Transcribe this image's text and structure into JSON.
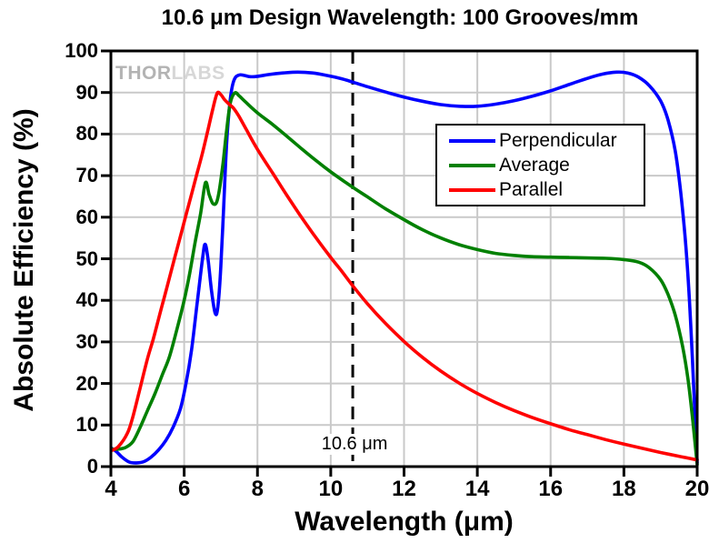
{
  "title": "10.6 μm Design Wavelength: 100 Grooves/mm",
  "watermark": {
    "part1": "THOR",
    "part2": "LABS"
  },
  "chart_data": {
    "type": "line",
    "title": "10.6 μm Design Wavelength: 100 Grooves/mm",
    "xlabel": "Wavelength (μm)",
    "ylabel": "Absolute Efficiency (%)",
    "xlim": [
      4,
      20
    ],
    "ylim": [
      0,
      100
    ],
    "x_ticks": [
      4,
      6,
      8,
      10,
      12,
      14,
      16,
      18,
      20
    ],
    "y_ticks": [
      0,
      10,
      20,
      30,
      40,
      50,
      60,
      70,
      80,
      90,
      100
    ],
    "grid": true,
    "grid_color": "#c9c9c9",
    "frame_color": "#000000",
    "legend_position": "upper-right-inside",
    "annotation": {
      "x": 10.6,
      "label": "10.6 μm",
      "style": "dashed-vertical-line"
    },
    "series": [
      {
        "name": "Perpendicular",
        "color": "#0000ff",
        "points": [
          [
            4,
            4.5
          ],
          [
            4.15,
            3.6
          ],
          [
            4.3,
            2.3
          ],
          [
            4.5,
            1.1
          ],
          [
            4.7,
            0.9
          ],
          [
            4.9,
            1.2
          ],
          [
            5.1,
            2.3
          ],
          [
            5.3,
            4
          ],
          [
            5.5,
            6.3
          ],
          [
            5.7,
            9.5
          ],
          [
            5.9,
            14
          ],
          [
            6.05,
            20
          ],
          [
            6.2,
            28
          ],
          [
            6.35,
            39
          ],
          [
            6.5,
            50
          ],
          [
            6.57,
            53.5
          ],
          [
            6.65,
            50
          ],
          [
            6.75,
            42
          ],
          [
            6.85,
            36.8
          ],
          [
            6.92,
            38.5
          ],
          [
            7,
            48
          ],
          [
            7.08,
            63
          ],
          [
            7.16,
            78
          ],
          [
            7.26,
            88.5
          ],
          [
            7.36,
            93
          ],
          [
            7.5,
            94.2
          ],
          [
            7.65,
            94.1
          ],
          [
            7.8,
            93.8
          ],
          [
            8,
            93.9
          ],
          [
            8.3,
            94.3
          ],
          [
            8.7,
            94.7
          ],
          [
            9.1,
            94.9
          ],
          [
            9.5,
            94.7
          ],
          [
            9.9,
            94.1
          ],
          [
            10.3,
            93.3
          ],
          [
            10.6,
            92.5
          ],
          [
            11,
            91.4
          ],
          [
            11.5,
            90.1
          ],
          [
            12,
            88.9
          ],
          [
            12.5,
            87.9
          ],
          [
            13,
            87.1
          ],
          [
            13.5,
            86.7
          ],
          [
            14,
            86.7
          ],
          [
            14.5,
            87.2
          ],
          [
            15,
            88
          ],
          [
            15.5,
            89.1
          ],
          [
            16,
            90.4
          ],
          [
            16.5,
            91.9
          ],
          [
            17,
            93.4
          ],
          [
            17.4,
            94.4
          ],
          [
            17.8,
            94.9
          ],
          [
            18.1,
            94.7
          ],
          [
            18.4,
            93.7
          ],
          [
            18.7,
            91.6
          ],
          [
            19,
            88
          ],
          [
            19.2,
            83.5
          ],
          [
            19.4,
            76
          ],
          [
            19.55,
            66
          ],
          [
            19.7,
            52
          ],
          [
            19.82,
            35
          ],
          [
            19.92,
            16
          ],
          [
            20,
            1
          ]
        ]
      },
      {
        "name": "Average",
        "color": "#008000",
        "points": [
          [
            4,
            4.2
          ],
          [
            4.2,
            4.2
          ],
          [
            4.4,
            4.6
          ],
          [
            4.6,
            6
          ],
          [
            4.8,
            9.5
          ],
          [
            5,
            13.5
          ],
          [
            5.2,
            17.5
          ],
          [
            5.4,
            22
          ],
          [
            5.6,
            26.5
          ],
          [
            5.8,
            33
          ],
          [
            6,
            40
          ],
          [
            6.15,
            46.5
          ],
          [
            6.3,
            54
          ],
          [
            6.45,
            61
          ],
          [
            6.58,
            68.3
          ],
          [
            6.68,
            65.5
          ],
          [
            6.78,
            63.3
          ],
          [
            6.88,
            63.5
          ],
          [
            6.96,
            66.5
          ],
          [
            7.06,
            73
          ],
          [
            7.16,
            81
          ],
          [
            7.26,
            87.5
          ],
          [
            7.38,
            89.9
          ],
          [
            7.5,
            89.2
          ],
          [
            7.7,
            87.5
          ],
          [
            8,
            85.1
          ],
          [
            8.4,
            82.4
          ],
          [
            8.8,
            79.5
          ],
          [
            9.2,
            76.5
          ],
          [
            9.6,
            73.6
          ],
          [
            10,
            70.9
          ],
          [
            10.6,
            67.2
          ],
          [
            11,
            64.9
          ],
          [
            11.5,
            62
          ],
          [
            12,
            59.4
          ],
          [
            12.5,
            57
          ],
          [
            13,
            55
          ],
          [
            13.5,
            53.4
          ],
          [
            14,
            52.2
          ],
          [
            14.5,
            51.3
          ],
          [
            15,
            50.8
          ],
          [
            15.5,
            50.5
          ],
          [
            16,
            50.4
          ],
          [
            16.5,
            50.3
          ],
          [
            17,
            50.2
          ],
          [
            17.5,
            50.1
          ],
          [
            18,
            49.8
          ],
          [
            18.4,
            49.2
          ],
          [
            18.7,
            47.8
          ],
          [
            19,
            45
          ],
          [
            19.2,
            41.5
          ],
          [
            19.4,
            36.5
          ],
          [
            19.6,
            29
          ],
          [
            19.75,
            21
          ],
          [
            19.88,
            11
          ],
          [
            20,
            0.5
          ]
        ]
      },
      {
        "name": "Parallel",
        "color": "#ff0000",
        "points": [
          [
            4,
            3.8
          ],
          [
            4.2,
            4.8
          ],
          [
            4.45,
            8
          ],
          [
            4.6,
            12
          ],
          [
            4.8,
            19
          ],
          [
            5,
            26
          ],
          [
            5.15,
            30.5
          ],
          [
            5.3,
            35.5
          ],
          [
            5.45,
            40.5
          ],
          [
            5.6,
            45.5
          ],
          [
            5.75,
            50.5
          ],
          [
            5.9,
            55.5
          ],
          [
            6.05,
            60.5
          ],
          [
            6.2,
            65.5
          ],
          [
            6.35,
            70.5
          ],
          [
            6.5,
            75.5
          ],
          [
            6.65,
            81
          ],
          [
            6.78,
            86
          ],
          [
            6.9,
            89.8
          ],
          [
            7,
            89.5
          ],
          [
            7.1,
            88.3
          ],
          [
            7.25,
            87
          ],
          [
            7.35,
            86.2
          ],
          [
            7.5,
            84.2
          ],
          [
            7.7,
            81
          ],
          [
            8,
            76.3
          ],
          [
            8.4,
            70.8
          ],
          [
            8.8,
            65.3
          ],
          [
            9.2,
            60
          ],
          [
            9.6,
            55
          ],
          [
            10,
            50.3
          ],
          [
            10.3,
            47
          ],
          [
            10.6,
            43.5
          ],
          [
            11,
            39.2
          ],
          [
            11.5,
            34.4
          ],
          [
            12,
            30.1
          ],
          [
            12.5,
            26.3
          ],
          [
            13,
            23
          ],
          [
            13.5,
            20.1
          ],
          [
            14,
            17.6
          ],
          [
            14.5,
            15.4
          ],
          [
            15,
            13.5
          ],
          [
            15.5,
            11.8
          ],
          [
            16,
            10.3
          ],
          [
            16.5,
            8.9
          ],
          [
            17,
            7.7
          ],
          [
            17.5,
            6.5
          ],
          [
            18,
            5.4
          ],
          [
            18.5,
            4.4
          ],
          [
            19,
            3.4
          ],
          [
            19.5,
            2.5
          ],
          [
            20,
            1.6
          ]
        ]
      }
    ]
  }
}
